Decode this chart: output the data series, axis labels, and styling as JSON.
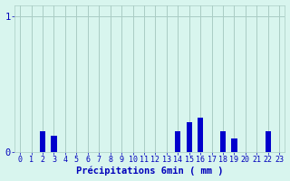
{
  "hours": [
    0,
    1,
    2,
    3,
    4,
    5,
    6,
    7,
    8,
    9,
    10,
    11,
    12,
    13,
    14,
    15,
    16,
    17,
    18,
    19,
    20,
    21,
    22,
    23
  ],
  "values": [
    0,
    0,
    0.15,
    0.12,
    0,
    0,
    0,
    0,
    0,
    0,
    0,
    0,
    0,
    0,
    0.15,
    0.22,
    0.25,
    0,
    0.15,
    0.1,
    0,
    0,
    0.15,
    0
  ],
  "bar_color": "#0000cc",
  "background_color": "#d8f5ee",
  "grid_color": "#aaccc4",
  "axis_color": "#0000bb",
  "tick_color": "#0000bb",
  "xlabel": "Précipitations 6min ( mm )",
  "xlabel_fontsize": 7.5,
  "tick_fontsize": 6,
  "ylim": [
    0,
    1.08
  ],
  "yticks": [
    0,
    1
  ],
  "ytick_labels": [
    "0",
    "1"
  ],
  "xlim": [
    -0.5,
    23.5
  ],
  "bar_width": 0.5
}
